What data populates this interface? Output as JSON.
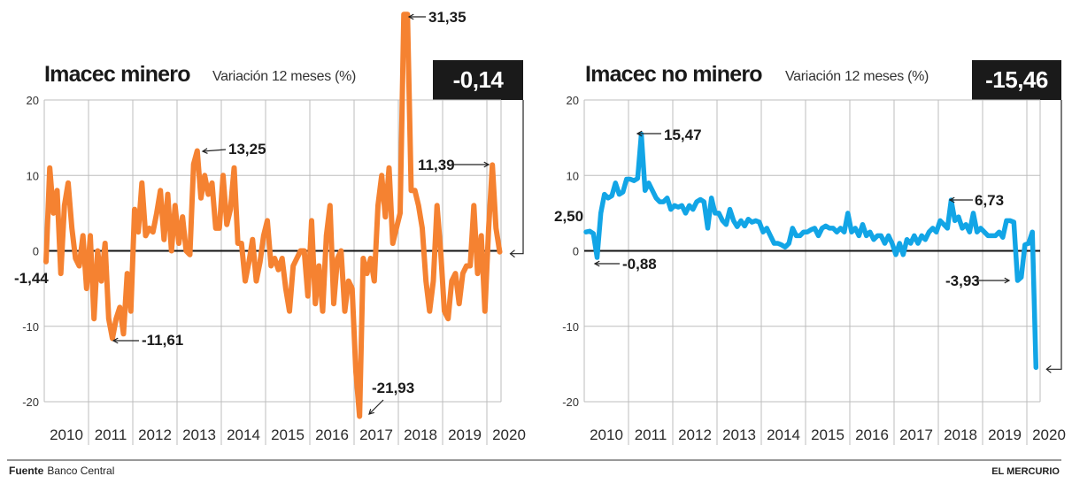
{
  "footer": {
    "source_label": "Fuente",
    "source": "Banco Central",
    "brand": "EL MERCURIO"
  },
  "chart_data": [
    {
      "type": "line",
      "title": "Imacec minero",
      "subtitle": "Variación 12 meses (%)",
      "current_value": "-0,14",
      "color": "#f58231",
      "ylim": [
        -20,
        20
      ],
      "yticks": [
        "20",
        "10",
        "0",
        "-10",
        "-20"
      ],
      "ytick_values": [
        20,
        10,
        0,
        -10,
        -20
      ],
      "xticks": [
        "2010",
        "2011",
        "2012",
        "2013",
        "2014",
        "2015",
        "2016",
        "2017",
        "2018",
        "2019",
        "2020"
      ],
      "x_start": "2010-01",
      "frequency": "monthly",
      "values": [
        -1.44,
        11,
        5,
        8,
        -3,
        6,
        9,
        3,
        -1,
        -2,
        2,
        -5,
        2,
        -9,
        0,
        -4,
        1,
        -9,
        -11.61,
        -9,
        -7.5,
        -11,
        -3,
        -8,
        5.5,
        2.5,
        9,
        2,
        3,
        2.5,
        5,
        8,
        1.5,
        7.5,
        0,
        6,
        1,
        4.5,
        0,
        -0.5,
        11.5,
        13.25,
        7,
        10,
        7.5,
        9,
        3,
        3,
        10,
        3.5,
        5.5,
        11,
        1,
        1,
        -4,
        -1.5,
        1.5,
        -4,
        -1.5,
        2,
        4,
        -2,
        -1,
        -2.5,
        -1,
        -5,
        -8,
        -2,
        -1,
        0,
        0,
        -6,
        4,
        -7,
        -2,
        -8,
        2,
        6,
        -7,
        -1,
        0,
        -8,
        -4,
        -5,
        -16,
        -21.93,
        -1,
        -3,
        -1,
        -4,
        6,
        10,
        4.5,
        11,
        1,
        3,
        5,
        31.35,
        31.35,
        8,
        8,
        6,
        3,
        -4,
        -8,
        -4,
        6,
        0,
        -8,
        -9,
        -4,
        -3,
        -7,
        -3,
        -2,
        -2,
        6,
        -3,
        2,
        -8,
        3,
        11.39,
        3,
        -0.14
      ],
      "annotations": [
        {
          "label": "-1,44",
          "value": -1.44
        },
        {
          "label": "-11,61",
          "value": -11.61
        },
        {
          "label": "13,25",
          "value": 13.25
        },
        {
          "label": "-21,93",
          "value": -21.93
        },
        {
          "label": "31,35",
          "value": 31.35
        },
        {
          "label": "11,39",
          "value": 11.39
        }
      ]
    },
    {
      "type": "line",
      "title": "Imacec no minero",
      "subtitle": "Variación 12 meses (%)",
      "current_value": "-15,46",
      "color": "#12a5e6",
      "ylim": [
        -20,
        20
      ],
      "yticks": [
        "20",
        "10",
        "0",
        "-10",
        "-20"
      ],
      "ytick_values": [
        20,
        10,
        0,
        -10,
        -20
      ],
      "xticks": [
        "2010",
        "2011",
        "2012",
        "2013",
        "2014",
        "2015",
        "2016",
        "2017",
        "2018",
        "2019",
        "2020"
      ],
      "x_start": "2010-01",
      "frequency": "monthly",
      "values": [
        2.5,
        2.6,
        2.3,
        -0.88,
        5,
        7.5,
        7,
        7.3,
        9,
        7.5,
        7.8,
        9.5,
        9.5,
        9.3,
        9.6,
        15.47,
        8,
        9,
        8,
        7,
        6.5,
        6.5,
        7,
        5.5,
        6,
        5.8,
        6,
        5,
        6,
        5.5,
        6.5,
        6.8,
        6.5,
        3,
        7,
        5,
        5,
        4,
        3.5,
        5.5,
        4,
        3.2,
        4,
        3.3,
        4.2,
        3.8,
        4,
        3.8,
        2.5,
        3,
        2,
        1,
        1,
        0.8,
        0.5,
        1,
        3,
        2,
        2,
        2.5,
        2.5,
        2.8,
        3,
        2,
        3,
        3.3,
        3,
        3,
        2.5,
        3,
        2.5,
        5,
        2.5,
        3,
        2,
        3.5,
        2,
        2.5,
        1.5,
        2,
        2,
        1,
        2,
        1,
        -0.5,
        1,
        -0.5,
        1.5,
        1,
        2,
        1,
        2,
        1.5,
        2.5,
        3,
        2.5,
        4,
        3.5,
        3,
        6.73,
        4,
        4.5,
        3,
        3.5,
        2.5,
        5,
        2.5,
        3,
        2.5,
        2,
        2,
        2,
        2.5,
        1.8,
        4,
        4,
        3.8,
        -3.93,
        -3.5,
        0.8,
        1,
        2.5,
        -15.46
      ],
      "annotations": [
        {
          "label": "2,50",
          "value": 2.5
        },
        {
          "label": "-0,88",
          "value": -0.88
        },
        {
          "label": "15,47",
          "value": 15.47
        },
        {
          "label": "6,73",
          "value": 6.73
        },
        {
          "label": "-3,93",
          "value": -3.93
        }
      ]
    }
  ]
}
